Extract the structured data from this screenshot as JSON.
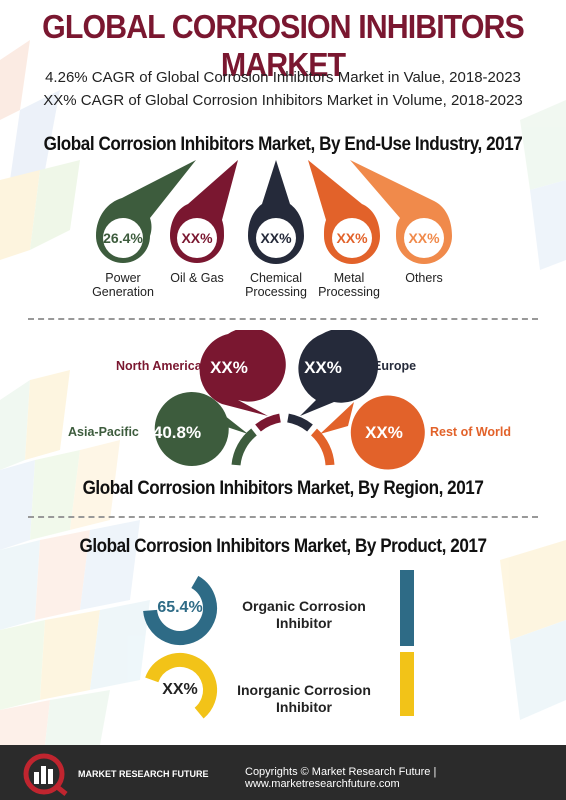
{
  "title": "GLOBAL CORROSION INHIBITORS MARKET",
  "cagr": {
    "value_line": "4.26% CAGR of Global Corrosion Inhibitors Market in Value, 2018-2023",
    "volume_line": "XX% CAGR of Global Corrosion Inhibitors Market in Volume, 2018-2023"
  },
  "end_use": {
    "title": "Global Corrosion Inhibitors Market, By End-Use Industry, 2017",
    "items": [
      {
        "value": "26.4%",
        "label_1": "Power",
        "label_2": "Generation",
        "color": "#3d5c3d",
        "value_color": "#3d5c3d"
      },
      {
        "value": "XX%",
        "label_1": "Oil & Gas",
        "label_2": "",
        "color": "#7a1730",
        "value_color": "#7a1730"
      },
      {
        "value": "XX%",
        "label_1": "Chemical",
        "label_2": "Processing",
        "color": "#252a3a",
        "value_color": "#252a3a"
      },
      {
        "value": "XX%",
        "label_1": "Metal",
        "label_2": "Processing",
        "color": "#e2622a",
        "value_color": "#e2622a"
      },
      {
        "value": "XX%",
        "label_1": "Others",
        "label_2": "",
        "color": "#f08a4b",
        "value_color": "#f08a4b"
      }
    ]
  },
  "region": {
    "title": "Global Corrosion Inhibitors Market, By Region, 2017",
    "items": [
      {
        "name": "North America",
        "value": "XX%",
        "color": "#7a1730"
      },
      {
        "name": "Europe",
        "value": "XX%",
        "color": "#252a3a"
      },
      {
        "name": "Asia-Pacific",
        "value": "40.8%",
        "color": "#3d5c3d"
      },
      {
        "name": "Rest of World",
        "value": "XX%",
        "color": "#e2622a"
      }
    ]
  },
  "product": {
    "title": "Global Corrosion Inhibitors Market, By Product, 2017",
    "items": [
      {
        "value": "65.4%",
        "label_1": "Organic Corrosion",
        "label_2": "Inhibitor",
        "color": "#2e6b86"
      },
      {
        "value": "XX%",
        "label_1": "Inorganic Corrosion",
        "label_2": "Inhibitor",
        "color": "#f2c318"
      }
    ]
  },
  "footer": {
    "brand": "MARKET RESEARCH FUTURE",
    "copyright": "Copyrights © Market Research Future | www.marketresearchfuture.com"
  }
}
